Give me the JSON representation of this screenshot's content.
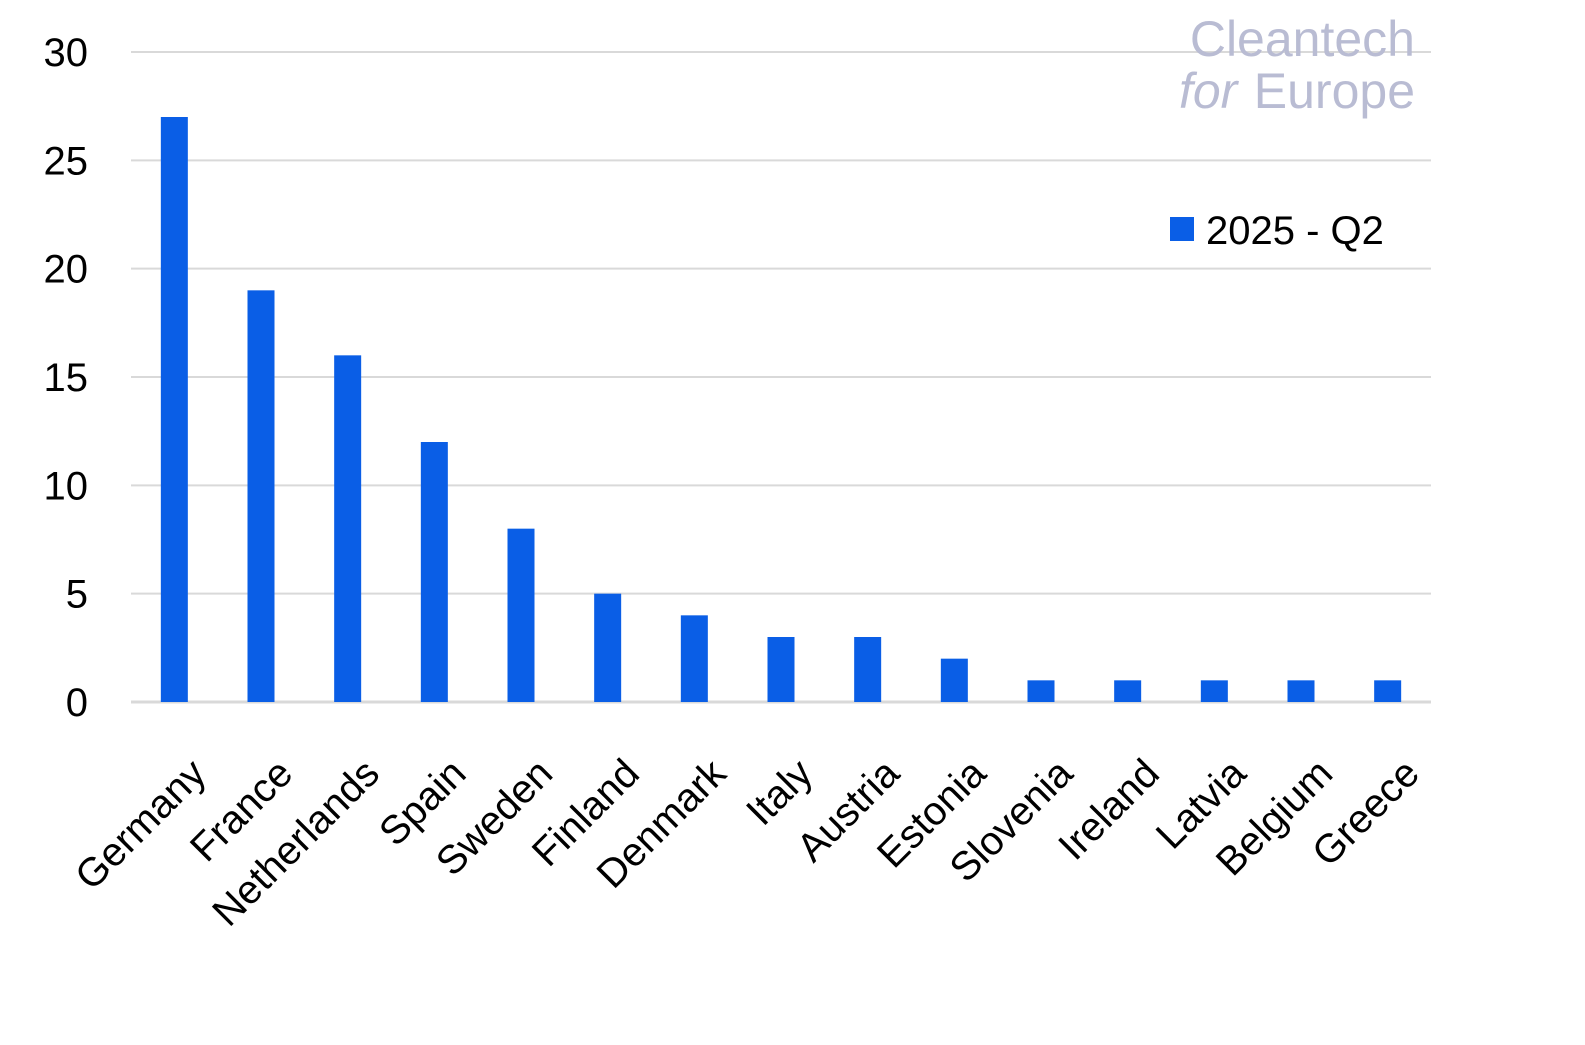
{
  "chart_data": {
    "type": "bar",
    "title": "",
    "xlabel": "",
    "ylabel": "",
    "categories": [
      "Germany",
      "France",
      "Netherlands",
      "Spain",
      "Sweden",
      "Finland",
      "Denmark",
      "Italy",
      "Austria",
      "Estonia",
      "Slovenia",
      "Ireland",
      "Latvia",
      "Belgium",
      "Greece"
    ],
    "series": [
      {
        "name": "2025 - Q2",
        "values": [
          27,
          19,
          16,
          12,
          8,
          5,
          4,
          3,
          3,
          2,
          1,
          1,
          1,
          1,
          1
        ],
        "color": "#0a5ee6"
      }
    ],
    "ylim": [
      0,
      30
    ],
    "yticks": [
      0,
      5,
      10,
      15,
      20,
      25,
      30
    ],
    "grid": true,
    "gridColor": "#d9d9d9",
    "legend": "top-right"
  },
  "logo": {
    "line1": "Cleantech",
    "line2_italic": "for",
    "line2": "Europe",
    "color": "#b9bcd3"
  }
}
